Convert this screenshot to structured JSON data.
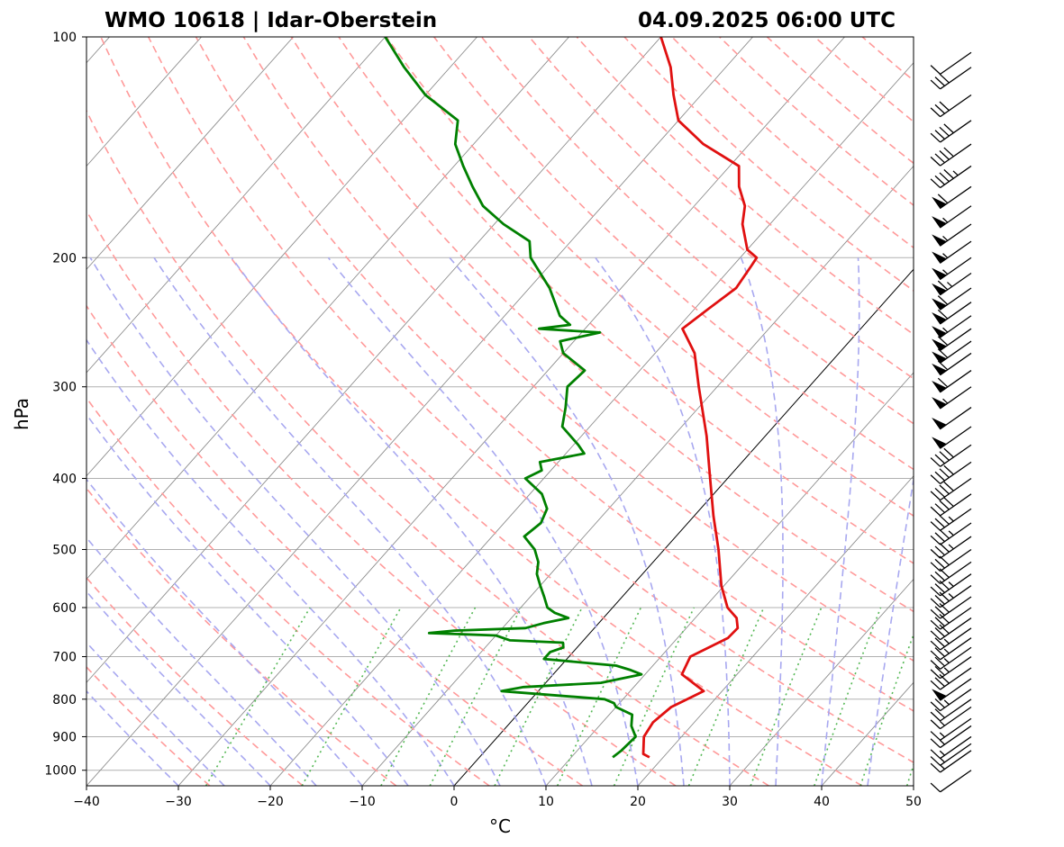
{
  "header": {
    "station": "WMO 10618 | Idar-Oberstein",
    "datetime": "04.09.2025 06:00 UTC"
  },
  "chart_data": {
    "type": "skew-t",
    "xlabel": "°C",
    "ylabel": "hPa",
    "xlim": [
      -40,
      50
    ],
    "ylim": [
      1050,
      100
    ],
    "y_scale": "log",
    "x_ticks": [
      "−40",
      "−30",
      "−20",
      "−10",
      "0",
      "10",
      "20",
      "30",
      "40",
      "50"
    ],
    "x_tick_values": [
      -40,
      -30,
      -20,
      -10,
      0,
      10,
      20,
      30,
      40,
      50
    ],
    "y_ticks": [
      "100",
      "200",
      "300",
      "400",
      "500",
      "600",
      "700",
      "800",
      "900",
      "1000"
    ],
    "y_tick_values": [
      100,
      200,
      300,
      400,
      500,
      600,
      700,
      800,
      900,
      1000
    ],
    "grid": true,
    "colors": {
      "temperature": "#e01010",
      "dewpoint": "#008000",
      "dry_adiabats": "#ff9a9a",
      "moist_adiabats": "#a8a8f0",
      "mixing_ratio": "#55b855",
      "isotherms": "#8a8a8a",
      "zero_isotherm": "#000000",
      "grid": "#b0b0b0",
      "barbs": "#000000"
    },
    "series": [
      {
        "key": "temperature",
        "points": [
          [
            960,
            18.5
          ],
          [
            950,
            17.5
          ],
          [
            900,
            15.9
          ],
          [
            860,
            15.5
          ],
          [
            820,
            16.0
          ],
          [
            780,
            18.0
          ],
          [
            740,
            14.0
          ],
          [
            700,
            13.2
          ],
          [
            660,
            15.5
          ],
          [
            640,
            15.6
          ],
          [
            620,
            14.5
          ],
          [
            600,
            12.5
          ],
          [
            560,
            9.7
          ],
          [
            500,
            5.9
          ],
          [
            450,
            2.1
          ],
          [
            400,
            -1.9
          ],
          [
            350,
            -6.4
          ],
          [
            300,
            -12.0
          ],
          [
            270,
            -15.7
          ],
          [
            250,
            -19.4
          ],
          [
            235,
            -18.5
          ],
          [
            220,
            -17.5
          ],
          [
            205,
            -18.0
          ],
          [
            200,
            -18.2
          ],
          [
            195,
            -20.0
          ],
          [
            180,
            -23.0
          ],
          [
            170,
            -24.5
          ],
          [
            160,
            -27.0
          ],
          [
            150,
            -29.0
          ],
          [
            140,
            -35.0
          ],
          [
            130,
            -40.0
          ],
          [
            120,
            -43.0
          ],
          [
            110,
            -46.0
          ],
          [
            100,
            -50.0
          ]
        ]
      },
      {
        "key": "dewpoint",
        "points": [
          [
            960,
            14.5
          ],
          [
            940,
            14.8
          ],
          [
            900,
            15.0
          ],
          [
            870,
            13.5
          ],
          [
            840,
            12.5
          ],
          [
            820,
            10.0
          ],
          [
            810,
            9.4
          ],
          [
            800,
            8.0
          ],
          [
            790,
            2.0
          ],
          [
            780,
            -4.0
          ],
          [
            770,
            -2.0
          ],
          [
            760,
            6.0
          ],
          [
            740,
            9.6
          ],
          [
            730,
            8.0
          ],
          [
            720,
            6.0
          ],
          [
            705,
            -2.5
          ],
          [
            690,
            -2.5
          ],
          [
            680,
            -1.5
          ],
          [
            670,
            -2.0
          ],
          [
            665,
            -8.0
          ],
          [
            655,
            -10.0
          ],
          [
            650,
            -17.5
          ],
          [
            645,
            -15.0
          ],
          [
            640,
            -7.5
          ],
          [
            630,
            -6.0
          ],
          [
            620,
            -3.8
          ],
          [
            610,
            -5.8
          ],
          [
            600,
            -7.1
          ],
          [
            580,
            -8.5
          ],
          [
            560,
            -10.0
          ],
          [
            540,
            -11.5
          ],
          [
            520,
            -12.5
          ],
          [
            500,
            -14.1
          ],
          [
            480,
            -16.5
          ],
          [
            460,
            -16.0
          ],
          [
            440,
            -16.7
          ],
          [
            420,
            -18.7
          ],
          [
            400,
            -22.0
          ],
          [
            390,
            -21.0
          ],
          [
            380,
            -22.0
          ],
          [
            370,
            -18.0
          ],
          [
            360,
            -19.5
          ],
          [
            340,
            -23.0
          ],
          [
            320,
            -24.5
          ],
          [
            300,
            -26.3
          ],
          [
            285,
            -26.0
          ],
          [
            270,
            -30.0
          ],
          [
            260,
            -31.5
          ],
          [
            253,
            -28.0
          ],
          [
            250,
            -35.0
          ],
          [
            247,
            -32.0
          ],
          [
            240,
            -34.0
          ],
          [
            220,
            -37.8
          ],
          [
            200,
            -42.8
          ],
          [
            190,
            -44.5
          ],
          [
            180,
            -49.0
          ],
          [
            170,
            -53.0
          ],
          [
            160,
            -56.0
          ],
          [
            150,
            -59.0
          ],
          [
            140,
            -62.0
          ],
          [
            130,
            -64.0
          ],
          [
            120,
            -70.0
          ],
          [
            110,
            -75.0
          ],
          [
            100,
            -80.0
          ]
        ]
      }
    ],
    "wind_barbs": [
      {
        "p": 1000,
        "speed": 10
      },
      {
        "p": 940,
        "speed": 15
      },
      {
        "p": 920,
        "speed": 15
      },
      {
        "p": 900,
        "speed": 15
      },
      {
        "p": 870,
        "speed": 15
      },
      {
        "p": 850,
        "speed": 15
      },
      {
        "p": 820,
        "speed": 15
      },
      {
        "p": 800,
        "speed": 20
      },
      {
        "p": 775,
        "speed": 25
      },
      {
        "p": 750,
        "speed": 50
      },
      {
        "p": 725,
        "speed": 30
      },
      {
        "p": 700,
        "speed": 25
      },
      {
        "p": 680,
        "speed": 25
      },
      {
        "p": 660,
        "speed": 25
      },
      {
        "p": 640,
        "speed": 25
      },
      {
        "p": 620,
        "speed": 30
      },
      {
        "p": 600,
        "speed": 30
      },
      {
        "p": 580,
        "speed": 30
      },
      {
        "p": 560,
        "speed": 35
      },
      {
        "p": 540,
        "speed": 35
      },
      {
        "p": 520,
        "speed": 30
      },
      {
        "p": 500,
        "speed": 30
      },
      {
        "p": 480,
        "speed": 35
      },
      {
        "p": 460,
        "speed": 35
      },
      {
        "p": 440,
        "speed": 35
      },
      {
        "p": 420,
        "speed": 40
      },
      {
        "p": 400,
        "speed": 40
      },
      {
        "p": 380,
        "speed": 40
      },
      {
        "p": 360,
        "speed": 40
      },
      {
        "p": 340,
        "speed": 50
      },
      {
        "p": 320,
        "speed": 50
      },
      {
        "p": 300,
        "speed": 55
      },
      {
        "p": 285,
        "speed": 60
      },
      {
        "p": 270,
        "speed": 60
      },
      {
        "p": 260,
        "speed": 60
      },
      {
        "p": 250,
        "speed": 60
      },
      {
        "p": 240,
        "speed": 55
      },
      {
        "p": 230,
        "speed": 60
      },
      {
        "p": 220,
        "speed": 60
      },
      {
        "p": 210,
        "speed": 65
      },
      {
        "p": 200,
        "speed": 55
      },
      {
        "p": 190,
        "speed": 55
      },
      {
        "p": 180,
        "speed": 55
      },
      {
        "p": 170,
        "speed": 55
      },
      {
        "p": 160,
        "speed": 60
      },
      {
        "p": 150,
        "speed": 45
      },
      {
        "p": 140,
        "speed": 40
      },
      {
        "p": 130,
        "speed": 40
      },
      {
        "p": 120,
        "speed": 30
      },
      {
        "p": 110,
        "speed": 30
      },
      {
        "p": 105,
        "speed": 10
      }
    ]
  }
}
